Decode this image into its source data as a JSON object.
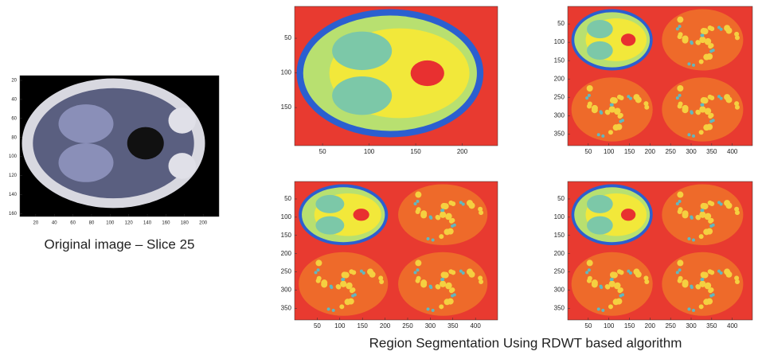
{
  "panels": [
    {
      "xlim": [
        3,
        217
      ],
      "ylim": [
        15,
        163
      ],
      "xticks": [
        20,
        40,
        60,
        80,
        100,
        120,
        140,
        160,
        180,
        200
      ],
      "yticks": [
        20,
        40,
        60,
        80,
        100,
        120,
        140,
        160
      ]
    },
    {
      "xlim": [
        20,
        238
      ],
      "ylim": [
        4,
        205
      ],
      "xticks": [
        50,
        100,
        150,
        200
      ],
      "yticks": [
        50,
        100,
        150
      ]
    },
    {
      "xlim": [
        0,
        449
      ],
      "ylim": [
        2,
        382
      ],
      "xticks": [
        50,
        100,
        150,
        200,
        250,
        300,
        350,
        400
      ],
      "yticks": [
        50,
        100,
        150,
        200,
        250,
        300,
        350
      ]
    },
    {
      "xlim": [
        0,
        449
      ],
      "ylim": [
        2,
        382
      ],
      "xticks": [
        50,
        100,
        150,
        200,
        250,
        300,
        350,
        400
      ],
      "yticks": [
        50,
        100,
        150,
        200,
        250,
        300,
        350
      ]
    },
    {
      "xlim": [
        0,
        449
      ],
      "ylim": [
        2,
        382
      ],
      "xticks": [
        50,
        100,
        150,
        200,
        250,
        300,
        350,
        400
      ],
      "yticks": [
        50,
        100,
        150,
        200,
        250,
        300,
        350
      ]
    }
  ],
  "captions": [
    "Original image –  Slice 25",
    "Region Segmentation Using RDWT based algorithm"
  ]
}
